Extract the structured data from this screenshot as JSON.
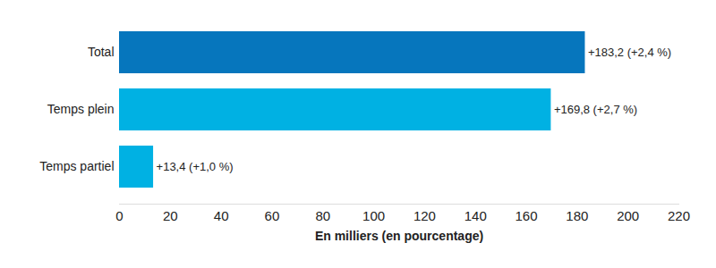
{
  "chart_data": {
    "type": "bar",
    "orientation": "horizontal",
    "categories": [
      "Total",
      "Temps plein",
      "Temps partiel"
    ],
    "values": [
      183.2,
      169.8,
      13.4
    ],
    "value_labels": [
      "+183,2 (+2,4 %)",
      "+169,8 (+2,7 %)",
      "+13,4 (+1,0 %)"
    ],
    "colors": [
      "#0676bd",
      "#00b1e3",
      "#00b1e3"
    ],
    "xlabel": "En milliers (en pourcentage)",
    "xlim": [
      0,
      220
    ],
    "xticks": [
      0,
      20,
      40,
      60,
      80,
      100,
      120,
      140,
      160,
      180,
      200,
      220
    ],
    "grid": false,
    "data_labels": true
  }
}
